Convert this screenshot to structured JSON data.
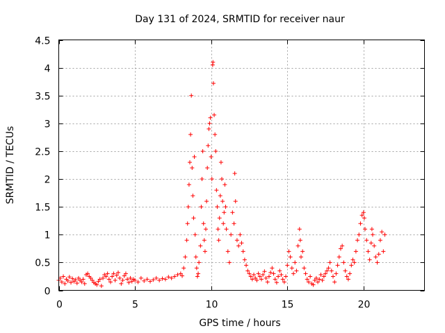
{
  "chart_data": {
    "type": "scatter",
    "title": "Day 131 of 2024, SRMTID for receiver naur",
    "xlabel": "GPS time / hours",
    "ylabel": "SRMTID / TECUs",
    "xlim": [
      0,
      24
    ],
    "ylim": [
      0,
      4.5
    ],
    "x_ticks": [
      0,
      5,
      10,
      15,
      20
    ],
    "x_tick_labels": [
      "0",
      "5",
      "10",
      "15",
      "20"
    ],
    "y_ticks": [
      0,
      0.5,
      1,
      1.5,
      2,
      2.5,
      3,
      3.5,
      4,
      4.5
    ],
    "y_tick_labels": [
      "0",
      "0.5",
      "1",
      "1.5",
      "2",
      "2.5",
      "3",
      "3.5",
      "4",
      "4.5"
    ],
    "grid": true,
    "marker": "+",
    "color": "#ff0000",
    "series": [
      {
        "name": "SRMTID",
        "points": [
          [
            0.0,
            0.18
          ],
          [
            0.1,
            0.22
          ],
          [
            0.2,
            0.15
          ],
          [
            0.3,
            0.25
          ],
          [
            0.4,
            0.12
          ],
          [
            0.5,
            0.2
          ],
          [
            0.6,
            0.17
          ],
          [
            0.7,
            0.24
          ],
          [
            0.8,
            0.14
          ],
          [
            0.9,
            0.21
          ],
          [
            1.0,
            0.16
          ],
          [
            1.1,
            0.19
          ],
          [
            1.2,
            0.13
          ],
          [
            1.3,
            0.22
          ],
          [
            1.4,
            0.18
          ],
          [
            1.5,
            0.15
          ],
          [
            1.6,
            0.2
          ],
          [
            1.7,
            0.12
          ],
          [
            1.8,
            0.28
          ],
          [
            1.9,
            0.3
          ],
          [
            2.0,
            0.25
          ],
          [
            2.1,
            0.22
          ],
          [
            2.2,
            0.18
          ],
          [
            2.3,
            0.14
          ],
          [
            2.4,
            0.12
          ],
          [
            2.5,
            0.1
          ],
          [
            2.6,
            0.16
          ],
          [
            2.7,
            0.2
          ],
          [
            2.8,
            0.08
          ],
          [
            2.9,
            0.22
          ],
          [
            3.0,
            0.28
          ],
          [
            3.1,
            0.25
          ],
          [
            3.2,
            0.3
          ],
          [
            3.3,
            0.2
          ],
          [
            3.4,
            0.15
          ],
          [
            3.5,
            0.25
          ],
          [
            3.6,
            0.3
          ],
          [
            3.7,
            0.18
          ],
          [
            3.8,
            0.27
          ],
          [
            3.9,
            0.32
          ],
          [
            4.0,
            0.22
          ],
          [
            4.1,
            0.12
          ],
          [
            4.2,
            0.18
          ],
          [
            4.3,
            0.26
          ],
          [
            4.4,
            0.3
          ],
          [
            4.5,
            0.2
          ],
          [
            4.6,
            0.14
          ],
          [
            4.7,
            0.22
          ],
          [
            4.8,
            0.16
          ],
          [
            4.9,
            0.2
          ],
          [
            5.0,
            0.18
          ],
          [
            5.2,
            0.15
          ],
          [
            5.4,
            0.22
          ],
          [
            5.6,
            0.17
          ],
          [
            5.8,
            0.2
          ],
          [
            6.0,
            0.16
          ],
          [
            6.2,
            0.19
          ],
          [
            6.4,
            0.22
          ],
          [
            6.6,
            0.18
          ],
          [
            6.8,
            0.21
          ],
          [
            7.0,
            0.2
          ],
          [
            7.2,
            0.24
          ],
          [
            7.4,
            0.22
          ],
          [
            7.6,
            0.25
          ],
          [
            7.8,
            0.28
          ],
          [
            8.0,
            0.3
          ],
          [
            8.1,
            0.26
          ],
          [
            8.2,
            0.4
          ],
          [
            8.3,
            0.6
          ],
          [
            8.4,
            0.9
          ],
          [
            8.45,
            1.2
          ],
          [
            8.5,
            1.5
          ],
          [
            8.55,
            1.9
          ],
          [
            8.6,
            2.3
          ],
          [
            8.65,
            2.8
          ],
          [
            8.7,
            3.5
          ],
          [
            8.75,
            2.2
          ],
          [
            8.8,
            1.7
          ],
          [
            8.85,
            1.3
          ],
          [
            8.9,
            2.4
          ],
          [
            8.95,
            1.0
          ],
          [
            9.0,
            0.6
          ],
          [
            9.05,
            0.4
          ],
          [
            9.1,
            0.25
          ],
          [
            9.15,
            0.3
          ],
          [
            9.2,
            0.5
          ],
          [
            9.3,
            0.8
          ],
          [
            9.35,
            1.5
          ],
          [
            9.4,
            2.0
          ],
          [
            9.45,
            2.5
          ],
          [
            9.5,
            1.2
          ],
          [
            9.55,
            0.9
          ],
          [
            9.6,
            0.7
          ],
          [
            9.65,
            1.1
          ],
          [
            9.7,
            1.6
          ],
          [
            9.75,
            2.2
          ],
          [
            9.8,
            2.6
          ],
          [
            9.85,
            2.9
          ],
          [
            9.9,
            3.0
          ],
          [
            9.95,
            3.1
          ],
          [
            10.0,
            2.4
          ],
          [
            10.05,
            2.0
          ],
          [
            10.1,
            4.05
          ],
          [
            10.12,
            4.1
          ],
          [
            10.15,
            3.72
          ],
          [
            10.2,
            3.15
          ],
          [
            10.25,
            2.8
          ],
          [
            10.3,
            2.5
          ],
          [
            10.35,
            1.8
          ],
          [
            10.4,
            1.5
          ],
          [
            10.45,
            1.1
          ],
          [
            10.5,
            0.9
          ],
          [
            10.55,
            1.3
          ],
          [
            10.6,
            1.7
          ],
          [
            10.65,
            2.3
          ],
          [
            10.7,
            2.0
          ],
          [
            10.75,
            1.6
          ],
          [
            10.8,
            1.2
          ],
          [
            10.85,
            1.4
          ],
          [
            10.9,
            1.9
          ],
          [
            10.95,
            1.5
          ],
          [
            11.0,
            1.1
          ],
          [
            11.1,
            0.7
          ],
          [
            11.2,
            0.5
          ],
          [
            11.3,
            1.0
          ],
          [
            11.4,
            1.4
          ],
          [
            11.5,
            1.2
          ],
          [
            11.55,
            2.1
          ],
          [
            11.6,
            1.6
          ],
          [
            11.7,
            0.9
          ],
          [
            11.8,
            0.8
          ],
          [
            11.9,
            1.0
          ],
          [
            12.0,
            0.85
          ],
          [
            12.1,
            0.7
          ],
          [
            12.2,
            0.55
          ],
          [
            12.3,
            0.45
          ],
          [
            12.4,
            0.35
          ],
          [
            12.5,
            0.3
          ],
          [
            12.6,
            0.25
          ],
          [
            12.7,
            0.2
          ],
          [
            12.8,
            0.28
          ],
          [
            12.9,
            0.22
          ],
          [
            13.0,
            0.18
          ],
          [
            13.1,
            0.3
          ],
          [
            13.2,
            0.25
          ],
          [
            13.3,
            0.2
          ],
          [
            13.4,
            0.28
          ],
          [
            13.5,
            0.34
          ],
          [
            13.6,
            0.22
          ],
          [
            13.7,
            0.15
          ],
          [
            13.8,
            0.25
          ],
          [
            13.9,
            0.32
          ],
          [
            14.0,
            0.4
          ],
          [
            14.1,
            0.3
          ],
          [
            14.2,
            0.2
          ],
          [
            14.3,
            0.14
          ],
          [
            14.4,
            0.25
          ],
          [
            14.5,
            0.35
          ],
          [
            14.6,
            0.28
          ],
          [
            14.7,
            0.2
          ],
          [
            14.8,
            0.15
          ],
          [
            14.9,
            0.25
          ],
          [
            15.0,
            0.45
          ],
          [
            15.1,
            0.7
          ],
          [
            15.2,
            0.6
          ],
          [
            15.3,
            0.4
          ],
          [
            15.4,
            0.3
          ],
          [
            15.5,
            0.5
          ],
          [
            15.6,
            0.35
          ],
          [
            15.7,
            0.8
          ],
          [
            15.8,
            1.1
          ],
          [
            15.85,
            0.9
          ],
          [
            15.9,
            0.6
          ],
          [
            16.0,
            0.7
          ],
          [
            16.1,
            0.4
          ],
          [
            16.2,
            0.3
          ],
          [
            16.3,
            0.2
          ],
          [
            16.4,
            0.15
          ],
          [
            16.5,
            0.25
          ],
          [
            16.6,
            0.12
          ],
          [
            16.7,
            0.1
          ],
          [
            16.8,
            0.18
          ],
          [
            16.9,
            0.22
          ],
          [
            17.0,
            0.15
          ],
          [
            17.1,
            0.2
          ],
          [
            17.2,
            0.28
          ],
          [
            17.3,
            0.18
          ],
          [
            17.4,
            0.25
          ],
          [
            17.5,
            0.3
          ],
          [
            17.6,
            0.35
          ],
          [
            17.7,
            0.4
          ],
          [
            17.8,
            0.5
          ],
          [
            17.9,
            0.35
          ],
          [
            18.0,
            0.25
          ],
          [
            18.1,
            0.15
          ],
          [
            18.2,
            0.3
          ],
          [
            18.3,
            0.45
          ],
          [
            18.4,
            0.6
          ],
          [
            18.5,
            0.75
          ],
          [
            18.6,
            0.8
          ],
          [
            18.7,
            0.5
          ],
          [
            18.8,
            0.35
          ],
          [
            18.9,
            0.25
          ],
          [
            19.0,
            0.2
          ],
          [
            19.1,
            0.3
          ],
          [
            19.2,
            0.45
          ],
          [
            19.3,
            0.55
          ],
          [
            19.4,
            0.5
          ],
          [
            19.5,
            0.7
          ],
          [
            19.6,
            0.9
          ],
          [
            19.7,
            1.0
          ],
          [
            19.8,
            1.2
          ],
          [
            19.9,
            1.35
          ],
          [
            20.0,
            1.4
          ],
          [
            20.05,
            1.3
          ],
          [
            20.1,
            1.1
          ],
          [
            20.2,
            0.9
          ],
          [
            20.3,
            0.7
          ],
          [
            20.4,
            0.55
          ],
          [
            20.5,
            0.85
          ],
          [
            20.55,
            1.1
          ],
          [
            20.6,
            1.0
          ],
          [
            20.7,
            0.8
          ],
          [
            20.8,
            0.6
          ],
          [
            20.9,
            0.5
          ],
          [
            21.0,
            0.65
          ],
          [
            21.1,
            0.9
          ],
          [
            21.2,
            1.05
          ],
          [
            21.3,
            0.7
          ],
          [
            21.4,
            1.0
          ]
        ]
      }
    ]
  }
}
